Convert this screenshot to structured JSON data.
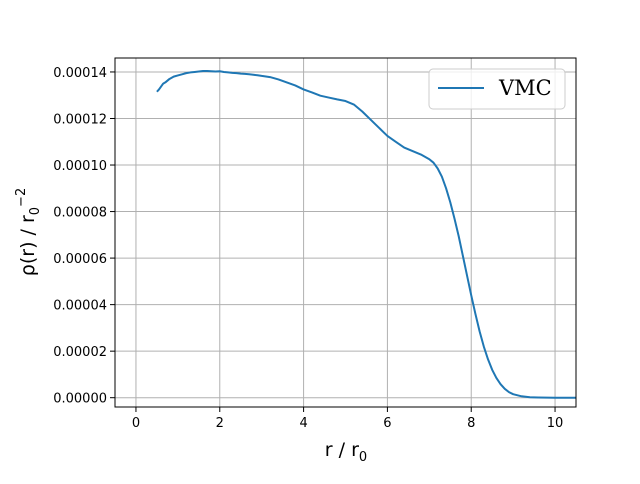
{
  "chart_data": {
    "type": "line",
    "title": "",
    "xlabel": "r / r",
    "xlabel_sub": "0",
    "ylabel": "ρ(r)  / r",
    "ylabel_sub": "0",
    "ylabel_sup": "−2",
    "xlim": [
      -0.5,
      10.5
    ],
    "ylim": [
      -4e-06,
      0.000146
    ],
    "xticks": [
      0,
      2,
      4,
      6,
      8,
      10
    ],
    "xtick_labels": [
      "0",
      "2",
      "4",
      "6",
      "8",
      "10"
    ],
    "yticks": [
      0,
      2e-05,
      4e-05,
      6e-05,
      8e-05,
      0.0001,
      0.00012,
      0.00014
    ],
    "ytick_labels": [
      "0.00000",
      "0.00002",
      "0.00004",
      "0.00006",
      "0.00008",
      "0.00010",
      "0.00012",
      "0.00014"
    ],
    "grid": true,
    "legend_position": "top-right",
    "series": [
      {
        "name": "VMC",
        "color": "#1f77b4",
        "x": [
          0.5,
          0.55,
          0.65,
          0.7,
          0.8,
          0.9,
          1.0,
          1.1,
          1.2,
          1.3,
          1.4,
          1.5,
          1.6,
          1.7,
          1.8,
          1.9,
          2.0,
          2.1,
          2.2,
          2.3,
          2.4,
          2.5,
          2.6,
          2.7,
          2.8,
          2.9,
          3.0,
          3.2,
          3.4,
          3.6,
          3.8,
          4.0,
          4.2,
          4.4,
          4.6,
          4.8,
          5.0,
          5.2,
          5.4,
          5.6,
          5.8,
          6.0,
          6.2,
          6.4,
          6.6,
          6.8,
          7.0,
          7.1,
          7.2,
          7.3,
          7.4,
          7.5,
          7.6,
          7.7,
          7.8,
          7.9,
          8.0,
          8.1,
          8.2,
          8.3,
          8.4,
          8.5,
          8.6,
          8.7,
          8.8,
          8.9,
          9.0,
          9.2,
          9.4,
          9.6,
          9.8,
          10.0,
          10.2,
          10.5
        ],
        "y": [
          0.0001315,
          0.0001325,
          0.000135,
          0.0001355,
          0.000137,
          0.000138,
          0.0001385,
          0.000139,
          0.0001395,
          0.0001398,
          0.00014,
          0.0001402,
          0.0001404,
          0.0001404,
          0.0001403,
          0.0001402,
          0.0001403,
          0.00014,
          0.0001398,
          0.0001396,
          0.0001395,
          0.0001393,
          0.0001392,
          0.000139,
          0.0001388,
          0.0001386,
          0.0001383,
          0.0001378,
          0.0001368,
          0.0001355,
          0.0001342,
          0.0001325,
          0.0001312,
          0.0001298,
          0.000129,
          0.0001282,
          0.0001275,
          0.000126,
          0.000123,
          0.0001195,
          0.000116,
          0.0001125,
          0.00011,
          0.0001075,
          0.000106,
          0.0001045,
          0.0001025,
          0.000101,
          9.85e-05,
          9.5e-05,
          9e-05,
          8.4e-05,
          7.7e-05,
          6.95e-05,
          6.1e-05,
          5.25e-05,
          4.4e-05,
          3.6e-05,
          2.85e-05,
          2.2e-05,
          1.65e-05,
          1.2e-05,
          8.5e-06,
          5.8e-06,
          3.8e-06,
          2.4e-06,
          1.5e-06,
          6e-07,
          2e-07,
          1e-07,
          5e-08,
          0.0,
          0.0,
          0.0
        ]
      }
    ]
  }
}
